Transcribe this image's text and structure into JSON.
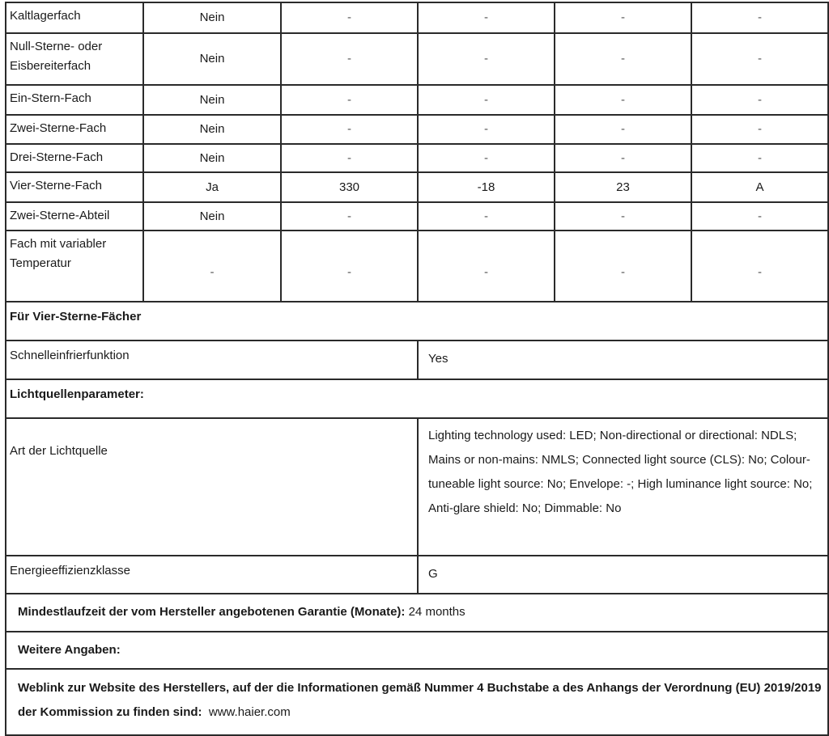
{
  "compartments": [
    {
      "name": "Kaltlagerfach",
      "values": [
        "Nein",
        "-",
        "-",
        "-",
        "-"
      ]
    },
    {
      "name": "Null-Sterne- oder Eisbereiterfach",
      "values": [
        "Nein",
        "-",
        "-",
        "-",
        "-"
      ]
    },
    {
      "name": "Ein-Stern-Fach",
      "values": [
        "Nein",
        "-",
        "-",
        "-",
        "-"
      ]
    },
    {
      "name": "Zwei-Sterne-Fach",
      "values": [
        "Nein",
        "-",
        "-",
        "-",
        "-"
      ]
    },
    {
      "name": "Drei-Sterne-Fach",
      "values": [
        "Nein",
        "-",
        "-",
        "-",
        "-"
      ]
    },
    {
      "name": "Vier-Sterne-Fach",
      "values": [
        "Ja",
        "330",
        "-18",
        "23",
        "A"
      ]
    },
    {
      "name": "Zwei-Sterne-Abteil",
      "values": [
        "Nein",
        "-",
        "-",
        "-",
        "-"
      ]
    },
    {
      "name": "Fach mit variabler Temperatur",
      "values": [
        "-",
        "-",
        "-",
        "-",
        "-"
      ]
    }
  ],
  "four_star_heading": "Für Vier-Sterne-Fächer",
  "quick_freeze": {
    "label": "Schnelleinfrierfunktion",
    "value": "Yes"
  },
  "light_heading": "Lichtquellenparameter:",
  "light_type": {
    "label": "Art der Lichtquelle",
    "value": "Lighting technology used: LED; Non-directional or directional: NDLS; Mains or non-mains: NMLS; Connected light source (CLS): No; Colour-tuneable light source: No; Envelope: -; High luminance light source: No; Anti-glare shield: No; Dimmable: No"
  },
  "energy_class": {
    "label": "Energieeffizienzklasse",
    "value": "G"
  },
  "warranty": {
    "label": "Mindestlaufzeit der vom Hersteller angebotenen Garantie (Monate):",
    "value": "24 months"
  },
  "more_info": "Weitere Angaben:",
  "weblink": {
    "label": "Weblink zur Website des Herstellers, auf der die Informationen gemäß Nummer 4 Buchstabe a des Anhangs der Verordnung (EU) 2019/2019 der Kommission zu finden sind:",
    "value": "www.haier.com"
  }
}
